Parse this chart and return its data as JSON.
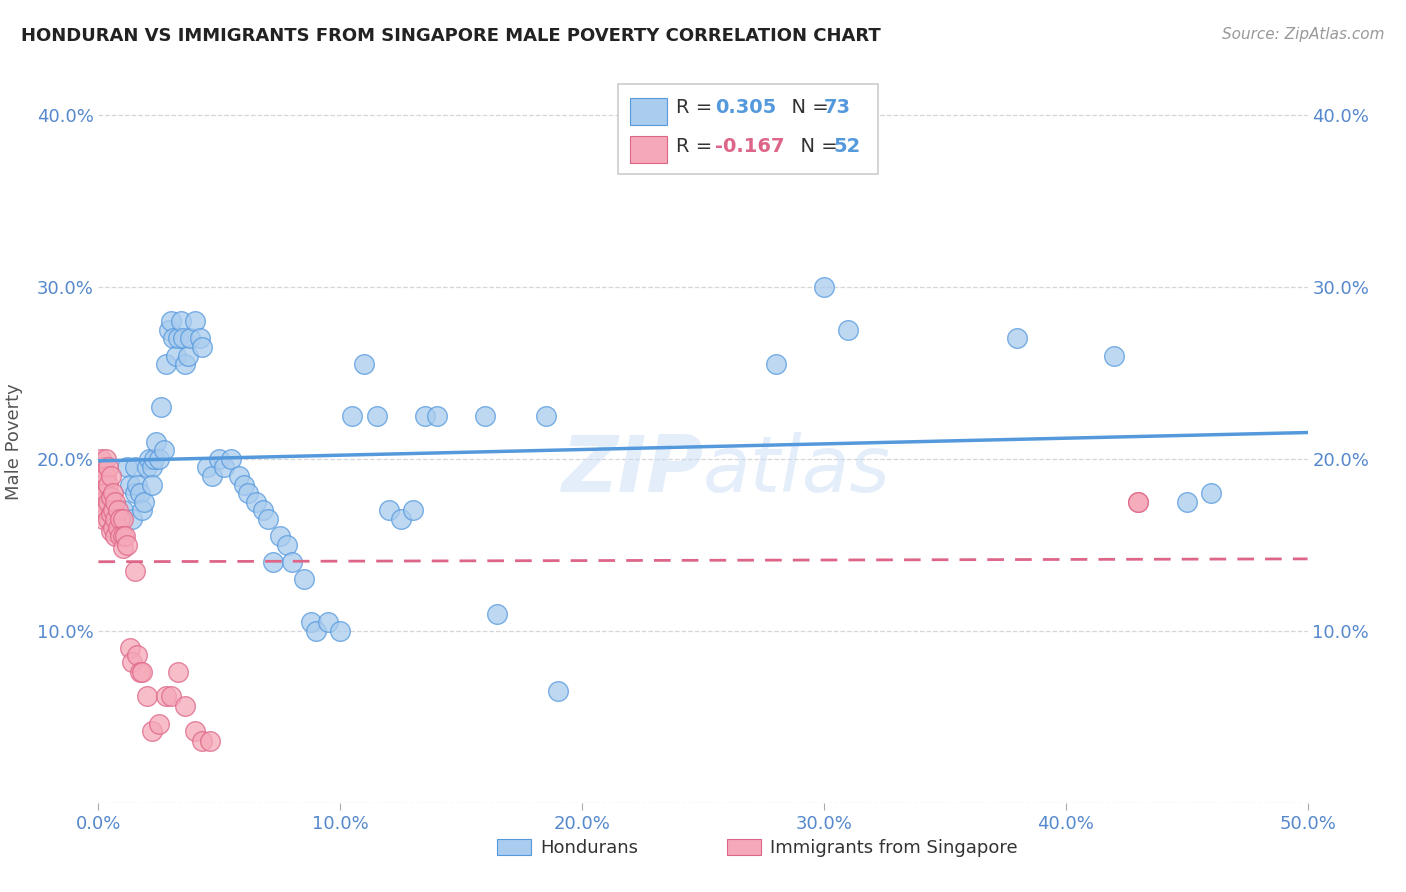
{
  "title": "HONDURAN VS IMMIGRANTS FROM SINGAPORE MALE POVERTY CORRELATION CHART",
  "source": "Source: ZipAtlas.com",
  "ylabel": "Male Poverty",
  "xlim": [
    0.0,
    0.5
  ],
  "ylim": [
    0.0,
    0.42
  ],
  "xticks": [
    0.0,
    0.1,
    0.2,
    0.3,
    0.4,
    0.5
  ],
  "yticks": [
    0.0,
    0.1,
    0.2,
    0.3,
    0.4
  ],
  "xticklabels": [
    "0.0%",
    "10.0%",
    "20.0%",
    "30.0%",
    "40.0%",
    "50.0%"
  ],
  "yticklabels": [
    "",
    "10.0%",
    "20.0%",
    "30.0%",
    "40.0%"
  ],
  "right_yticklabels": [
    "",
    "10.0%",
    "20.0%",
    "30.0%",
    "40.0%"
  ],
  "legend_label1": "Hondurans",
  "legend_label2": "Immigrants from Singapore",
  "R1": 0.305,
  "N1": 73,
  "R2": -0.167,
  "N2": 52,
  "color_blue": "#aaccee",
  "color_pink": "#f5a8b8",
  "color_line_blue": "#5599dd",
  "color_line_pink": "#dd6688",
  "watermark": "ZIPatlas",
  "hondurans_x": [
    0.005,
    0.01,
    0.012,
    0.013,
    0.014,
    0.015,
    0.015,
    0.016,
    0.017,
    0.018,
    0.019,
    0.02,
    0.021,
    0.022,
    0.022,
    0.023,
    0.024,
    0.025,
    0.026,
    0.027,
    0.028,
    0.029,
    0.03,
    0.031,
    0.032,
    0.033,
    0.034,
    0.035,
    0.036,
    0.037,
    0.038,
    0.04,
    0.042,
    0.043,
    0.045,
    0.047,
    0.05,
    0.052,
    0.055,
    0.058,
    0.06,
    0.062,
    0.065,
    0.068,
    0.07,
    0.072,
    0.075,
    0.078,
    0.08,
    0.085,
    0.088,
    0.09,
    0.095,
    0.1,
    0.105,
    0.11,
    0.115,
    0.12,
    0.125,
    0.13,
    0.135,
    0.14,
    0.16,
    0.165,
    0.185,
    0.19,
    0.28,
    0.3,
    0.31,
    0.38,
    0.42,
    0.45,
    0.46
  ],
  "hondurans_y": [
    0.175,
    0.17,
    0.195,
    0.185,
    0.165,
    0.18,
    0.195,
    0.185,
    0.18,
    0.17,
    0.175,
    0.195,
    0.2,
    0.195,
    0.185,
    0.2,
    0.21,
    0.2,
    0.23,
    0.205,
    0.255,
    0.275,
    0.28,
    0.27,
    0.26,
    0.27,
    0.28,
    0.27,
    0.255,
    0.26,
    0.27,
    0.28,
    0.27,
    0.265,
    0.195,
    0.19,
    0.2,
    0.195,
    0.2,
    0.19,
    0.185,
    0.18,
    0.175,
    0.17,
    0.165,
    0.14,
    0.155,
    0.15,
    0.14,
    0.13,
    0.105,
    0.1,
    0.105,
    0.1,
    0.225,
    0.255,
    0.225,
    0.17,
    0.165,
    0.17,
    0.225,
    0.225,
    0.225,
    0.11,
    0.225,
    0.065,
    0.255,
    0.3,
    0.275,
    0.27,
    0.26,
    0.175,
    0.18
  ],
  "singapore_x": [
    0.001,
    0.001,
    0.001,
    0.002,
    0.002,
    0.002,
    0.002,
    0.003,
    0.003,
    0.003,
    0.003,
    0.004,
    0.004,
    0.004,
    0.004,
    0.005,
    0.005,
    0.005,
    0.005,
    0.006,
    0.006,
    0.006,
    0.007,
    0.007,
    0.007,
    0.008,
    0.008,
    0.009,
    0.009,
    0.01,
    0.01,
    0.01,
    0.011,
    0.012,
    0.013,
    0.014,
    0.015,
    0.016,
    0.017,
    0.018,
    0.02,
    0.022,
    0.025,
    0.028,
    0.03,
    0.033,
    0.036,
    0.04,
    0.043,
    0.046,
    0.43,
    0.43
  ],
  "singapore_y": [
    0.2,
    0.195,
    0.18,
    0.195,
    0.185,
    0.175,
    0.165,
    0.2,
    0.19,
    0.18,
    0.17,
    0.195,
    0.185,
    0.175,
    0.165,
    0.19,
    0.178,
    0.168,
    0.158,
    0.18,
    0.17,
    0.16,
    0.175,
    0.165,
    0.155,
    0.17,
    0.16,
    0.165,
    0.155,
    0.165,
    0.155,
    0.148,
    0.155,
    0.15,
    0.09,
    0.082,
    0.135,
    0.086,
    0.076,
    0.076,
    0.062,
    0.042,
    0.046,
    0.062,
    0.062,
    0.076,
    0.056,
    0.042,
    0.036,
    0.036,
    0.175,
    0.175
  ]
}
